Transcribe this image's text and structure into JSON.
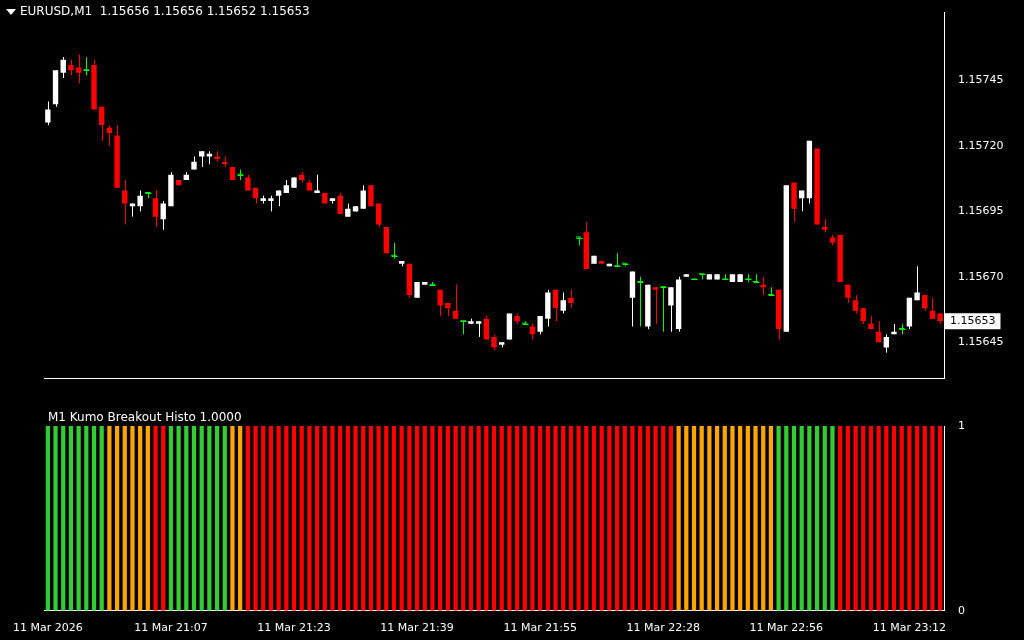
{
  "chart_data": [
    {
      "type": "candlestick",
      "title": "EURUSD,M1  1.15656 1.15656 1.15652 1.15653",
      "categories": [
        null,
        null,
        null,
        null,
        null,
        null,
        null,
        null,
        null,
        null,
        null,
        null,
        null,
        null,
        null,
        null,
        null,
        null,
        null,
        null,
        null,
        null,
        null,
        null,
        null,
        null,
        null,
        null,
        null,
        null,
        null,
        null,
        null,
        null,
        null,
        null,
        null,
        null,
        null,
        null,
        null,
        null,
        null,
        null,
        null,
        null,
        null,
        null,
        null,
        null,
        null,
        null,
        null,
        null,
        null,
        null,
        null,
        null,
        null,
        null,
        null,
        null,
        null,
        null,
        null,
        null,
        null,
        null,
        null,
        null,
        null,
        null,
        null,
        null,
        null,
        null,
        null,
        null,
        null,
        null,
        null,
        null,
        null,
        null,
        null,
        null,
        null,
        null,
        null,
        null,
        null,
        null,
        null,
        null,
        null,
        null,
        null,
        null,
        null,
        null,
        null,
        null,
        null,
        null,
        null,
        null,
        null,
        null,
        null,
        null,
        null,
        null,
        null,
        null,
        null,
        null,
        null
      ],
      "ohlc": [
        [
          1.15729,
          1.15737,
          1.15728,
          1.15734
        ],
        [
          1.15736,
          1.15749,
          1.15735,
          1.15749
        ],
        [
          1.15748,
          1.15754,
          1.15746,
          1.15753
        ],
        [
          1.15751,
          1.15753,
          1.15747,
          1.15749
        ],
        [
          1.1575,
          1.15755,
          1.15744,
          1.15748
        ],
        [
          1.15749,
          1.15754,
          1.15747,
          1.15749
        ],
        [
          1.15751,
          1.15753,
          1.15734,
          1.15734
        ],
        [
          1.15735,
          1.15735,
          1.15722,
          1.15728
        ],
        [
          1.15727,
          1.15728,
          1.1572,
          1.15725
        ],
        [
          1.15724,
          1.15728,
          1.15704,
          1.15704
        ],
        [
          1.15703,
          1.15707,
          1.1569,
          1.15698
        ],
        [
          1.15697,
          1.15698,
          1.15693,
          1.15698
        ],
        [
          1.15697,
          1.15703,
          1.15695,
          1.15701
        ],
        [
          1.15702,
          1.15702,
          1.157,
          1.15702
        ],
        [
          1.157,
          1.15703,
          1.15689,
          1.15693
        ],
        [
          1.15692,
          1.15699,
          1.15688,
          1.15698
        ],
        [
          1.15697,
          1.1571,
          1.15697,
          1.15709
        ],
        [
          1.15707,
          1.15707,
          1.15705,
          1.15705
        ],
        [
          1.15707,
          1.1571,
          1.15707,
          1.15709
        ],
        [
          1.15711,
          1.15716,
          1.15711,
          1.15714
        ],
        [
          1.15716,
          1.15718,
          1.15712,
          1.15718
        ],
        [
          1.15716,
          1.15718,
          1.15713,
          1.15717
        ],
        [
          1.15716,
          1.15718,
          1.15714,
          1.15715
        ],
        [
          1.15714,
          1.15716,
          1.15712,
          1.15713
        ],
        [
          1.15712,
          1.15712,
          1.15707,
          1.15707
        ],
        [
          1.15709,
          1.15711,
          1.15707,
          1.15709
        ],
        [
          1.15708,
          1.15709,
          1.15703,
          1.15703
        ],
        [
          1.15704,
          1.15704,
          1.15698,
          1.157
        ],
        [
          1.15699,
          1.15701,
          1.15698,
          1.157
        ],
        [
          1.15699,
          1.15701,
          1.15695,
          1.157
        ],
        [
          1.15701,
          1.15703,
          1.15697,
          1.15703
        ],
        [
          1.15702,
          1.15707,
          1.15702,
          1.15705
        ],
        [
          1.15704,
          1.15708,
          1.15704,
          1.15708
        ],
        [
          1.15709,
          1.1571,
          1.15706,
          1.15707
        ],
        [
          1.15706,
          1.15707,
          1.15703,
          1.15703
        ],
        [
          1.15702,
          1.15709,
          1.15702,
          1.15703
        ],
        [
          1.15702,
          1.15702,
          1.15698,
          1.15698
        ],
        [
          1.15699,
          1.157,
          1.15698,
          1.157
        ],
        [
          1.15701,
          1.15702,
          1.15694,
          1.15694
        ],
        [
          1.15693,
          1.15698,
          1.15693,
          1.15696
        ],
        [
          1.15695,
          1.15697,
          1.15695,
          1.15697
        ],
        [
          1.15696,
          1.15705,
          1.15696,
          1.15703
        ],
        [
          1.15705,
          1.15705,
          1.15697,
          1.15697
        ],
        [
          1.15698,
          1.15698,
          1.15689,
          1.1569
        ],
        [
          1.15689,
          1.15689,
          1.15679,
          1.15679
        ],
        [
          1.15678,
          1.15683,
          1.15677,
          1.15678
        ],
        [
          1.15675,
          1.15676,
          1.15674,
          1.15676
        ],
        [
          1.15675,
          1.15675,
          1.15662,
          1.15663
        ],
        [
          1.15662,
          1.15668,
          1.15662,
          1.15668
        ],
        [
          1.15667,
          1.15668,
          1.15667,
          1.15668
        ],
        [
          1.15667,
          1.15668,
          1.15667,
          1.15667
        ],
        [
          1.15665,
          1.15665,
          1.15655,
          1.15659
        ],
        [
          1.1566,
          1.1566,
          1.15655,
          1.15658
        ],
        [
          1.15657,
          1.15667,
          1.15654,
          1.15654
        ],
        [
          1.15653,
          1.15653,
          1.15648,
          1.15653
        ],
        [
          1.15652,
          1.15654,
          1.15652,
          1.15653
        ],
        [
          1.15652,
          1.15653,
          1.15647,
          1.15653
        ],
        [
          1.15654,
          1.15655,
          1.15646,
          1.15646
        ],
        [
          1.15647,
          1.15648,
          1.15642,
          1.15643
        ],
        [
          1.15644,
          1.15645,
          1.15643,
          1.15645
        ],
        [
          1.15646,
          1.15656,
          1.15646,
          1.15656
        ],
        [
          1.15655,
          1.15656,
          1.15652,
          1.15653
        ],
        [
          1.15652,
          1.15653,
          1.15652,
          1.15652
        ],
        [
          1.15651,
          1.15652,
          1.15646,
          1.15648
        ],
        [
          1.15649,
          1.15655,
          1.15648,
          1.15655
        ],
        [
          1.15654,
          1.15665,
          1.15651,
          1.15664
        ],
        [
          1.15665,
          1.15665,
          1.15653,
          1.15658
        ],
        [
          1.15657,
          1.15664,
          1.15656,
          1.15661
        ],
        [
          1.15662,
          1.15665,
          1.15658,
          1.1566
        ],
        [
          1.15685,
          1.15685,
          1.15682,
          1.15685
        ],
        [
          1.15687,
          1.15691,
          1.15673,
          1.15673
        ],
        [
          1.15675,
          1.15678,
          1.15675,
          1.15678
        ],
        [
          1.15676,
          1.15676,
          1.15675,
          1.15675
        ],
        [
          1.15674,
          1.15675,
          1.15674,
          1.15675
        ],
        [
          1.15674,
          1.15679,
          1.15674,
          1.15674
        ],
        [
          1.15675,
          1.15675,
          1.15674,
          1.15675
        ],
        [
          1.15662,
          1.15672,
          1.15651,
          1.15672
        ],
        [
          1.15668,
          1.1567,
          1.15651,
          1.15668
        ],
        [
          1.15651,
          1.15667,
          1.1565,
          1.15667
        ],
        [
          1.15666,
          1.15666,
          1.15652,
          1.15665
        ],
        [
          1.15666,
          1.15666,
          1.15649,
          1.15666
        ],
        [
          1.15659,
          1.15666,
          1.15649,
          1.15666
        ],
        [
          1.1565,
          1.1567,
          1.15649,
          1.15669
        ],
        [
          1.1567,
          1.15671,
          1.1567,
          1.15671
        ],
        [
          1.15669,
          1.15669,
          1.15669,
          1.15669
        ],
        [
          1.15671,
          1.15671,
          1.15669,
          1.15671
        ],
        [
          1.15669,
          1.15671,
          1.15669,
          1.15671
        ],
        [
          1.15669,
          1.15671,
          1.15669,
          1.15671
        ],
        [
          1.15669,
          1.15671,
          1.15669,
          1.15669
        ],
        [
          1.15668,
          1.15671,
          1.15668,
          1.15671
        ],
        [
          1.15668,
          1.15671,
          1.15668,
          1.15671
        ],
        [
          1.15669,
          1.15671,
          1.15668,
          1.15669
        ],
        [
          1.15668,
          1.15671,
          1.15668,
          1.15668
        ],
        [
          1.15667,
          1.1567,
          1.15663,
          1.15666
        ],
        [
          1.15663,
          1.15666,
          1.15663,
          1.15663
        ],
        [
          1.15665,
          1.15665,
          1.15646,
          1.1565
        ],
        [
          1.15649,
          1.15705,
          1.15649,
          1.15705
        ],
        [
          1.15706,
          1.15706,
          1.15691,
          1.15696
        ],
        [
          1.157,
          1.15703,
          1.15695,
          1.15703
        ],
        [
          1.157,
          1.15722,
          1.15698,
          1.15722
        ],
        [
          1.15719,
          1.15719,
          1.1569,
          1.1569
        ],
        [
          1.15689,
          1.15692,
          1.15687,
          1.15688
        ],
        [
          1.15685,
          1.15686,
          1.15682,
          1.15683
        ],
        [
          1.15686,
          1.15686,
          1.15668,
          1.15668
        ],
        [
          1.15667,
          1.15667,
          1.1566,
          1.15662
        ],
        [
          1.15661,
          1.15663,
          1.15656,
          1.15657
        ],
        [
          1.15658,
          1.15658,
          1.15652,
          1.15653
        ],
        [
          1.15652,
          1.15655,
          1.1565,
          1.1565
        ],
        [
          1.15649,
          1.15653,
          1.15645,
          1.15645
        ],
        [
          1.15643,
          1.15648,
          1.15641,
          1.15647
        ],
        [
          1.15648,
          1.15652,
          1.15648,
          1.15649
        ],
        [
          1.1565,
          1.15652,
          1.15648,
          1.1565
        ],
        [
          1.15651,
          1.15662,
          1.1565,
          1.15662
        ],
        [
          1.15661,
          1.15674,
          1.15661,
          1.15664
        ],
        [
          1.15663,
          1.15663,
          1.15657,
          1.15658
        ],
        [
          1.15657,
          1.15662,
          1.15654,
          1.15654
        ],
        [
          1.15656,
          1.15656,
          1.15652,
          1.15653
        ]
      ],
      "colors": [
        "#ffffff",
        "#ffffff",
        "#ffffff",
        "#ff0000",
        "#ff0000",
        "#00ff00",
        "#ff0000",
        "#ff0000",
        "#ff0000",
        "#ff0000",
        "#ff0000",
        "#ffffff",
        "#ffffff",
        "#00ff00",
        "#ff0000",
        "#ffffff",
        "#ffffff",
        "#ff0000",
        "#ffffff",
        "#ffffff",
        "#ffffff",
        "#ffffff",
        "#ff0000",
        "#ff0000",
        "#ff0000",
        "#00ff00",
        "#ff0000",
        "#ff0000",
        "#ffffff",
        "#ffffff",
        "#ffffff",
        "#ffffff",
        "#ffffff",
        "#ff0000",
        "#ff0000",
        "#ffffff",
        "#ff0000",
        "#ffffff",
        "#ff0000",
        "#ffffff",
        "#ffffff",
        "#ffffff",
        "#ff0000",
        "#ff0000",
        "#ff0000",
        "#00ff00",
        "#ffffff",
        "#ff0000",
        "#ffffff",
        "#ffffff",
        "#00ff00",
        "#ff0000",
        "#ff0000",
        "#ff0000",
        "#00ff00",
        "#ffffff",
        "#ffffff",
        "#ff0000",
        "#ff0000",
        "#ffffff",
        "#ffffff",
        "#ff0000",
        "#00ff00",
        "#ff0000",
        "#ffffff",
        "#ffffff",
        "#ff0000",
        "#ffffff",
        "#ff0000",
        "#00ff00",
        "#ff0000",
        "#ffffff",
        "#ff0000",
        "#ffffff",
        "#00ff00",
        "#00ff00",
        "#ffffff",
        "#00ff00",
        "#ffffff",
        "#ff0000",
        "#00ff00",
        "#ffffff",
        "#ffffff",
        "#ffffff",
        "#00ff00",
        "#00ff00",
        "#ffffff",
        "#ffffff",
        "#00ff00",
        "#ffffff",
        "#ffffff",
        "#00ff00",
        "#00ff00",
        "#ff0000",
        "#00ff00",
        "#ff0000",
        "#ffffff",
        "#ff0000",
        "#ffffff",
        "#ffffff",
        "#ff0000",
        "#ff0000",
        "#ff0000",
        "#ff0000",
        "#ff0000",
        "#ff0000",
        "#ff0000",
        "#ff0000",
        "#ff0000",
        "#ffffff",
        "#ffffff",
        "#00ff00",
        "#ffffff",
        "#ffffff",
        "#ff0000",
        "#ff0000",
        "#ff0000"
      ],
      "ylim": [
        1.15631,
        1.15771
      ],
      "yticks": [
        1.15645,
        {
          "value": 1.1567,
          "label": "1.15670"
        },
        1.15695,
        {
          "value": 1.1572,
          "label": "1.15720"
        },
        1.15745
      ],
      "annotations": [
        "1.15653"
      ]
    },
    {
      "type": "bar",
      "title": "M1 Kumo Breakout Histo 1.0000",
      "categories": [
        "11 Mar 2026",
        null,
        null,
        null,
        null,
        null,
        null,
        null,
        null,
        null,
        null,
        null,
        null,
        null,
        null,
        null,
        "11 Mar 21:07",
        null,
        null,
        null,
        null,
        null,
        null,
        null,
        null,
        null,
        null,
        null,
        null,
        null,
        null,
        null,
        "11 Mar 21:23",
        null,
        null,
        null,
        null,
        null,
        null,
        null,
        null,
        null,
        null,
        null,
        null,
        null,
        null,
        null,
        "11 Mar 21:39",
        null,
        null,
        null,
        null,
        null,
        null,
        null,
        null,
        null,
        null,
        null,
        null,
        null,
        null,
        null,
        "11 Mar 21:55",
        null,
        null,
        null,
        null,
        null,
        null,
        null,
        null,
        null,
        null,
        null,
        null,
        null,
        null,
        null,
        "11 Mar 22:28",
        null,
        null,
        null,
        null,
        null,
        null,
        null,
        null,
        null,
        null,
        null,
        null,
        null,
        null,
        null,
        "11 Mar 22:56",
        null,
        null,
        null,
        null,
        null,
        null,
        null,
        null,
        null,
        null,
        null,
        null,
        null,
        null,
        null,
        "11 Mar 23:12",
        null,
        null,
        null,
        null
      ],
      "values": [
        1,
        1,
        1,
        1,
        1,
        1,
        1,
        1,
        1,
        1,
        1,
        1,
        1,
        1,
        1,
        1,
        1,
        1,
        1,
        1,
        1,
        1,
        1,
        1,
        1,
        1,
        1,
        1,
        1,
        1,
        1,
        1,
        1,
        1,
        1,
        1,
        1,
        1,
        1,
        1,
        1,
        1,
        1,
        1,
        1,
        1,
        1,
        1,
        1,
        1,
        1,
        1,
        1,
        1,
        1,
        1,
        1,
        1,
        1,
        1,
        1,
        1,
        1,
        1,
        1,
        1,
        1,
        1,
        1,
        1,
        1,
        1,
        1,
        1,
        1,
        1,
        1,
        1,
        1,
        1,
        1,
        1,
        1,
        1,
        1,
        1,
        1,
        1,
        1,
        1,
        1,
        1,
        1,
        1,
        1,
        1,
        1,
        1,
        1,
        1,
        1,
        1,
        1,
        1,
        1,
        1,
        1,
        1,
        1,
        1,
        1,
        1,
        1,
        1,
        1,
        1,
        1
      ],
      "colors": [
        "#32cd32",
        "#32cd32",
        "#32cd32",
        "#32cd32",
        "#32cd32",
        "#32cd32",
        "#32cd32",
        "#32cd32",
        "#ffa500",
        "#ffa500",
        "#ffa500",
        "#ffa500",
        "#ffa500",
        "#ffa500",
        "#ff0000",
        "#ff0000",
        "#32cd32",
        "#32cd32",
        "#32cd32",
        "#32cd32",
        "#32cd32",
        "#32cd32",
        "#32cd32",
        "#32cd32",
        "#ffa500",
        "#ffa500",
        "#ff0000",
        "#ff0000",
        "#ff0000",
        "#ff0000",
        "#ff0000",
        "#ff0000",
        "#ff0000",
        "#ff0000",
        "#ff0000",
        "#ff0000",
        "#ff0000",
        "#ff0000",
        "#ff0000",
        "#ff0000",
        "#ff0000",
        "#ff0000",
        "#ff0000",
        "#ff0000",
        "#ff0000",
        "#ff0000",
        "#ff0000",
        "#ff0000",
        "#ff0000",
        "#ff0000",
        "#ff0000",
        "#ff0000",
        "#ff0000",
        "#ff0000",
        "#ff0000",
        "#ff0000",
        "#ff0000",
        "#ff0000",
        "#ff0000",
        "#ff0000",
        "#ff0000",
        "#ff0000",
        "#ff0000",
        "#ff0000",
        "#ff0000",
        "#ff0000",
        "#ff0000",
        "#ff0000",
        "#ff0000",
        "#ff0000",
        "#ff0000",
        "#ff0000",
        "#ff0000",
        "#ff0000",
        "#ff0000",
        "#ff0000",
        "#ff0000",
        "#ff0000",
        "#ff0000",
        "#ff0000",
        "#ff0000",
        "#ff0000",
        "#ffa500",
        "#ffa500",
        "#ffa500",
        "#ffa500",
        "#ffa500",
        "#ffa500",
        "#ffa500",
        "#ffa500",
        "#ffa500",
        "#ffa500",
        "#ffa500",
        "#ffa500",
        "#ffa500",
        "#32cd32",
        "#32cd32",
        "#32cd32",
        "#32cd32",
        "#32cd32",
        "#32cd32",
        "#32cd32",
        "#32cd32",
        "#ff0000",
        "#ff0000",
        "#ff0000",
        "#ff0000",
        "#ff0000",
        "#ff0000",
        "#ff0000",
        "#ff0000",
        "#ff0000",
        "#ff0000",
        "#ff0000",
        "#ff0000",
        "#ff0000",
        "#ff0000"
      ],
      "ylim": [
        0,
        1
      ],
      "yticks": [
        0,
        1
      ]
    }
  ]
}
